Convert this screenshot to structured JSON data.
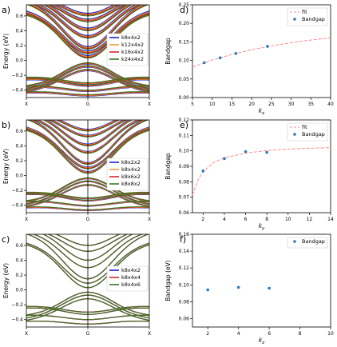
{
  "chart_data": [
    {
      "panel": "a)",
      "type": "line",
      "ylabel": "Energy (eV)",
      "xticks": [
        "X",
        "G",
        "X"
      ],
      "ylim": [
        -0.5,
        0.75
      ],
      "yticks": [
        -0.4,
        -0.2,
        0.0,
        0.2,
        0.4,
        0.6
      ],
      "tick_labels": [
        "−0.4",
        "−0.2",
        "0.0",
        "0.2",
        "0.4",
        "0.6"
      ],
      "series": [
        {
          "name": "k8x4x2",
          "color": "#1f1fcf"
        },
        {
          "name": "k12x4x2",
          "color": "#e69f3a"
        },
        {
          "name": "k16x4x2",
          "color": "#d62728"
        },
        {
          "name": "k24x4x2",
          "color": "#2e7d1f"
        }
      ]
    },
    {
      "panel": "b)",
      "type": "line",
      "ylabel": "Energy (eV)",
      "xticks": [
        "X",
        "G",
        "X"
      ],
      "ylim": [
        -0.5,
        0.75
      ],
      "yticks": [
        -0.4,
        -0.2,
        0.0,
        0.2,
        0.4,
        0.6
      ],
      "tick_labels": [
        "−0.4",
        "−0.2",
        "0.0",
        "0.2",
        "0.4",
        "0.6"
      ],
      "series": [
        {
          "name": "k8x2x2",
          "color": "#1f1fcf"
        },
        {
          "name": "k8x4x2",
          "color": "#e69f3a"
        },
        {
          "name": "k8x6x2",
          "color": "#d62728"
        },
        {
          "name": "k8x8x2",
          "color": "#2e7d1f"
        }
      ]
    },
    {
      "panel": "c)",
      "type": "line",
      "ylabel": "Energy (eV)",
      "xticks": [
        "X",
        "G",
        "X"
      ],
      "ylim": [
        -0.5,
        0.75
      ],
      "yticks": [
        -0.4,
        -0.2,
        0.0,
        0.2,
        0.4,
        0.6
      ],
      "tick_labels": [
        "−0.4",
        "−0.2",
        "0.0",
        "0.2",
        "0.4",
        "0.6"
      ],
      "series": [
        {
          "name": "k8x4x2",
          "color": "#1f1fcf"
        },
        {
          "name": "k8x4x4",
          "color": "#d62728"
        },
        {
          "name": "k8x4x6",
          "color": "#2e7d1f"
        }
      ]
    },
    {
      "panel": "d)",
      "type": "scatter",
      "xlabel": "k_x",
      "ylabel": "Bandgap",
      "xlim": [
        5,
        40
      ],
      "ylim": [
        0.0,
        0.25
      ],
      "xticks": [
        5,
        10,
        15,
        20,
        25,
        30,
        35,
        40
      ],
      "yticks": [
        0.0,
        0.05,
        0.1,
        0.15,
        0.2,
        0.25
      ],
      "xtick_labels": [
        "5",
        "10",
        "15",
        "20",
        "25",
        "30",
        "35",
        "40"
      ],
      "ytick_labels": [
        "0.00",
        "0.05",
        "0.10",
        "0.15",
        "0.20",
        "0.25"
      ],
      "legend": [
        "fit",
        "Bandgap"
      ],
      "points": {
        "x": [
          8,
          12,
          16,
          24
        ],
        "y": [
          0.094,
          0.107,
          0.119,
          0.138
        ]
      },
      "fit": {
        "x": [
          5,
          10,
          15,
          20,
          25,
          30,
          35,
          40
        ],
        "y": [
          0.082,
          0.101,
          0.116,
          0.129,
          0.139,
          0.148,
          0.155,
          0.161
        ]
      }
    },
    {
      "panel": "e)",
      "type": "scatter",
      "xlabel": "k_y",
      "ylabel": "Bandgap",
      "xlim": [
        1,
        14
      ],
      "ylim": [
        0.06,
        0.12
      ],
      "xticks": [
        2,
        4,
        6,
        8,
        10,
        12,
        14
      ],
      "yticks": [
        0.06,
        0.07,
        0.08,
        0.09,
        0.1,
        0.11,
        0.12
      ],
      "xtick_labels": [
        "2",
        "4",
        "6",
        "8",
        "10",
        "12",
        "14"
      ],
      "ytick_labels": [
        "0.06",
        "0.07",
        "0.08",
        "0.09",
        "0.10",
        "0.11",
        "0.12"
      ],
      "legend": [
        "fit",
        "Bandgap"
      ],
      "points": {
        "x": [
          2,
          4,
          6,
          8
        ],
        "y": [
          0.087,
          0.095,
          0.0995,
          0.099
        ]
      },
      "fit": {
        "x": [
          1,
          1.5,
          2,
          3,
          4,
          6,
          8,
          10,
          12,
          14
        ],
        "y": [
          0.0715,
          0.081,
          0.0865,
          0.0925,
          0.0955,
          0.0985,
          0.1002,
          0.1011,
          0.1017,
          0.1021
        ]
      }
    },
    {
      "panel": "f)",
      "type": "scatter",
      "xlabel": "k_z",
      "ylabel": "Bandgap (eV)",
      "xlim": [
        1,
        10
      ],
      "ylim": [
        0.05,
        0.16
      ],
      "xticks": [
        2,
        4,
        6,
        8,
        10
      ],
      "yticks": [
        0.06,
        0.08,
        0.1,
        0.12,
        0.14,
        0.16
      ],
      "xtick_labels": [
        "2",
        "4",
        "6",
        "8",
        "10"
      ],
      "ytick_labels": [
        "0.06",
        "0.08",
        "0.10",
        "0.12",
        "0.14",
        "0.16"
      ],
      "legend": [
        "Bandgap"
      ],
      "points": {
        "x": [
          2,
          4,
          6
        ],
        "y": [
          0.094,
          0.097,
          0.096
        ]
      }
    }
  ],
  "colors": {
    "point": "#2a7bbf",
    "fit": "#ff8a8a",
    "axis": "#000000"
  }
}
